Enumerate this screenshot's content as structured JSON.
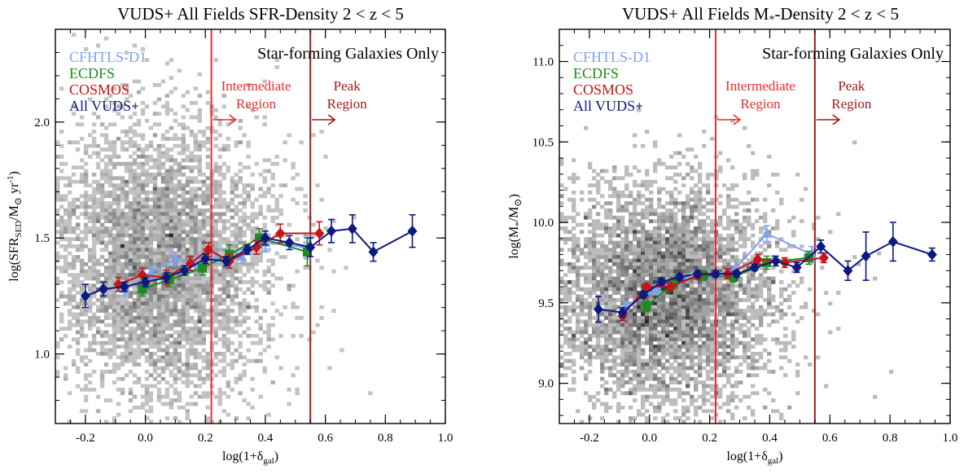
{
  "chart_data": [
    {
      "type": "scatter",
      "title": "VUDS+ All Fields SFR-Density 2 < z < 5",
      "title_parts": [
        "VUDS+ All Fields SFR-Density 2 < z < 5"
      ],
      "xlabel_parts": [
        "log(1+δ",
        "gal",
        ")"
      ],
      "ylabel_parts": [
        "log(SFR",
        "SED",
        "/M",
        "⊙",
        "yr",
        "-1",
        ")"
      ],
      "xlim": [
        -0.3,
        1.0
      ],
      "ylim": [
        0.7,
        2.4
      ],
      "xticks": [
        -0.2,
        0.0,
        0.2,
        0.4,
        0.6,
        0.8,
        1.0
      ],
      "xtick_labels": [
        "-0.2",
        "0.0",
        "0.2",
        "0.4",
        "0.6",
        "0.8",
        "1.0"
      ],
      "yticks": [
        1.0,
        1.5,
        2.0
      ],
      "ytick_labels": [
        "1.0",
        "1.5",
        "2.0"
      ],
      "yminor": 0.1,
      "xminor": 0.05,
      "annotation_title": "Star-forming Galaxies Only",
      "legend_placement": "top-left",
      "regions": [
        {
          "x": 0.22,
          "color": "#ee2a2a",
          "line1": "Intermediate",
          "line2": "Region"
        },
        {
          "x": 0.55,
          "color": "#a11a1a",
          "line1": "Peak",
          "line2": "Region"
        }
      ],
      "background": {
        "x_center": 0.05,
        "x_sigma": 0.17,
        "y_center": 1.4,
        "y_sigma": 0.3,
        "count": 5200,
        "seed": 7
      },
      "series": [
        {
          "name": "CFHTLS-D1",
          "color": "#7fa2f0",
          "marker": "triangle",
          "x": [
            -0.07,
            0.02,
            0.1,
            0.17,
            0.24,
            0.32,
            0.4,
            0.54
          ],
          "y": [
            1.28,
            1.35,
            1.41,
            1.39,
            1.42,
            1.42,
            1.48,
            1.46
          ],
          "err": [
            0.03,
            0.03,
            0.03,
            0.03,
            0.03,
            0.03,
            0.04,
            0.05
          ]
        },
        {
          "name": "ECDFS",
          "color": "#1f8a1f",
          "marker": "square",
          "x": [
            -0.01,
            0.08,
            0.19,
            0.28,
            0.38,
            0.54
          ],
          "y": [
            1.28,
            1.32,
            1.37,
            1.43,
            1.5,
            1.44
          ],
          "err": [
            0.03,
            0.03,
            0.03,
            0.04,
            0.04,
            0.06
          ]
        },
        {
          "name": "COSMOS",
          "color": "#c81414",
          "marker": "diamond",
          "x": [
            -0.09,
            -0.01,
            0.07,
            0.15,
            0.21,
            0.28,
            0.37,
            0.45,
            0.58
          ],
          "y": [
            1.3,
            1.34,
            1.33,
            1.39,
            1.45,
            1.4,
            1.46,
            1.52,
            1.52
          ],
          "err": [
            0.03,
            0.03,
            0.03,
            0.03,
            0.03,
            0.03,
            0.03,
            0.04,
            0.05
          ]
        },
        {
          "name": "All VUDS+",
          "color": "#0c1a80",
          "marker": "diamond",
          "x": [
            -0.2,
            -0.14,
            -0.07,
            0.0,
            0.07,
            0.13,
            0.2,
            0.27,
            0.34,
            0.4,
            0.48,
            0.55,
            0.62,
            0.69,
            0.76,
            0.89
          ],
          "y": [
            1.25,
            1.28,
            1.29,
            1.31,
            1.33,
            1.36,
            1.41,
            1.4,
            1.45,
            1.5,
            1.48,
            1.46,
            1.53,
            1.54,
            1.44,
            1.53
          ],
          "err": [
            0.05,
            0.03,
            0.02,
            0.02,
            0.02,
            0.02,
            0.02,
            0.02,
            0.02,
            0.03,
            0.03,
            0.04,
            0.05,
            0.06,
            0.04,
            0.07
          ]
        }
      ]
    },
    {
      "type": "scatter",
      "title": "VUDS+ All Fields M*-Density 2 < z < 5",
      "title_parts": [
        "VUDS+ All Fields M",
        "*",
        "-Density 2 < z < 5"
      ],
      "xlabel_parts": [
        "log(1+δ",
        "gal",
        ")"
      ],
      "ylabel_parts": [
        "log(M",
        "*",
        "/M",
        "⊙",
        ")"
      ],
      "xlim": [
        -0.3,
        1.0
      ],
      "ylim": [
        8.75,
        11.2
      ],
      "xticks": [
        -0.2,
        0.0,
        0.2,
        0.4,
        0.6,
        0.8,
        1.0
      ],
      "xtick_labels": [
        "-0.2",
        "0.0",
        "0.2",
        "0.4",
        "0.6",
        "0.8",
        "1.0"
      ],
      "yticks": [
        9.0,
        9.5,
        10.0,
        10.5,
        11.0
      ],
      "ytick_labels": [
        "9.0",
        "9.5",
        "10.0",
        "10.5",
        "11.0"
      ],
      "yminor": 0.1,
      "xminor": 0.05,
      "annotation_title": "Star-forming Galaxies Only",
      "legend_placement": "top-left",
      "regions": [
        {
          "x": 0.22,
          "color": "#ee2a2a",
          "line1": "Intermediate",
          "line2": "Region"
        },
        {
          "x": 0.55,
          "color": "#a11a1a",
          "line1": "Peak",
          "line2": "Region"
        }
      ],
      "background": {
        "x_center": 0.05,
        "x_sigma": 0.17,
        "y_center": 9.55,
        "y_sigma": 0.35,
        "count": 5200,
        "seed": 13
      },
      "series": [
        {
          "name": "CFHTLS-D1",
          "color": "#7fa2f0",
          "marker": "triangle",
          "x": [
            -0.08,
            0.02,
            0.1,
            0.19,
            0.28,
            0.39,
            0.54
          ],
          "y": [
            9.48,
            9.58,
            9.65,
            9.67,
            9.7,
            9.93,
            9.8
          ],
          "err": [
            0.03,
            0.03,
            0.03,
            0.03,
            0.03,
            0.05,
            0.05
          ]
        },
        {
          "name": "ECDFS",
          "color": "#1f8a1f",
          "marker": "square",
          "x": [
            -0.01,
            0.08,
            0.18,
            0.28,
            0.39,
            0.53
          ],
          "y": [
            9.48,
            9.62,
            9.67,
            9.66,
            9.75,
            9.78
          ],
          "err": [
            0.03,
            0.03,
            0.03,
            0.03,
            0.04,
            0.04
          ]
        },
        {
          "name": "COSMOS",
          "color": "#c81414",
          "marker": "diamond",
          "x": [
            -0.09,
            -0.01,
            0.07,
            0.16,
            0.26,
            0.36,
            0.45,
            0.58
          ],
          "y": [
            9.42,
            9.6,
            9.6,
            9.67,
            9.68,
            9.77,
            9.75,
            9.78
          ],
          "err": [
            0.03,
            0.02,
            0.02,
            0.02,
            0.03,
            0.03,
            0.03,
            0.03
          ]
        },
        {
          "name": "All VUDS+",
          "color": "#0c1a80",
          "marker": "diamond",
          "x": [
            -0.17,
            -0.09,
            -0.02,
            0.04,
            0.1,
            0.16,
            0.22,
            0.29,
            0.35,
            0.42,
            0.49,
            0.57,
            0.66,
            0.72,
            0.81,
            0.94
          ],
          "y": [
            9.46,
            9.44,
            9.55,
            9.63,
            9.66,
            9.68,
            9.68,
            9.68,
            9.72,
            9.76,
            9.72,
            9.85,
            9.7,
            9.79,
            9.88,
            9.8
          ],
          "err": [
            0.08,
            0.03,
            0.02,
            0.02,
            0.02,
            0.02,
            0.02,
            0.02,
            0.02,
            0.03,
            0.03,
            0.04,
            0.06,
            0.15,
            0.12,
            0.04
          ]
        }
      ]
    }
  ]
}
